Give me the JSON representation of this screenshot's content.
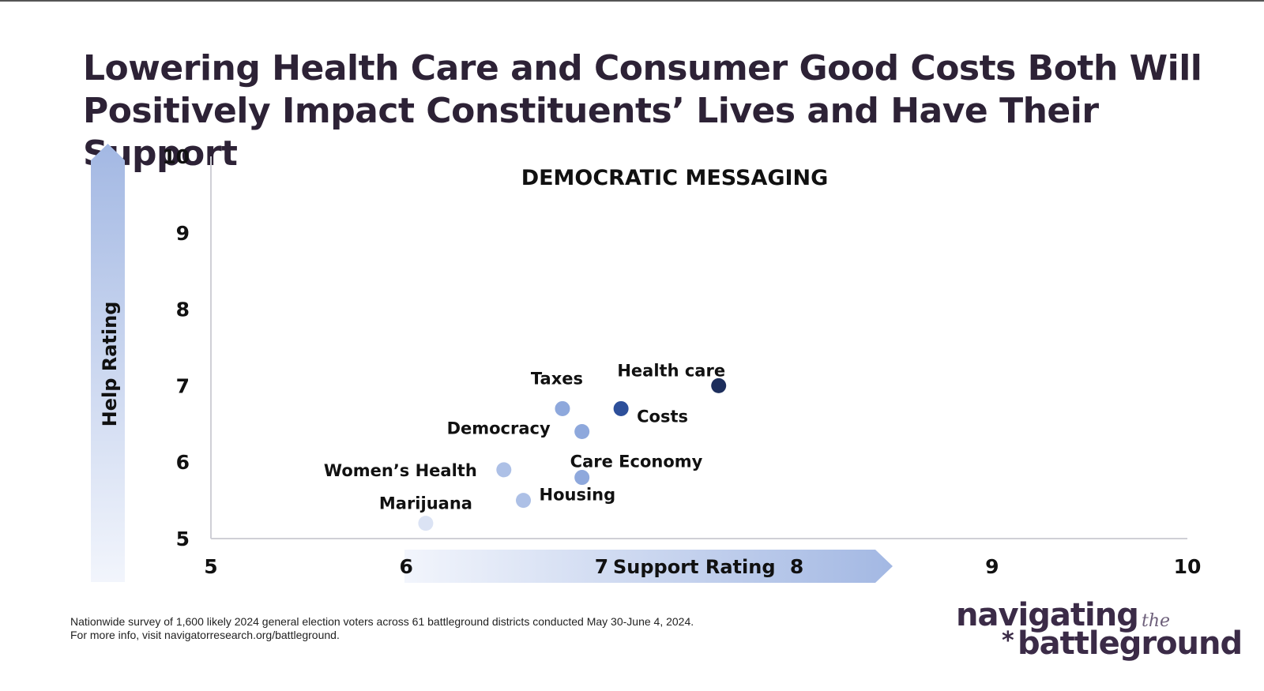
{
  "title": "Lowering Health Care and Consumer Good Costs Both Will Positively Impact Constituents’ Lives and Have Their Support",
  "footnote": {
    "line1": "Nationwide survey of 1,600 likely 2024 general election voters across 61 battleground districts conducted May 30-June 4, 2024.",
    "line2": "For more info, visit navigatorresearch.org/battleground."
  },
  "logo": {
    "line1": "navigating",
    "the": "the",
    "star": "*",
    "line2": "battleground"
  },
  "chart_data": {
    "type": "scatter",
    "title": "DEMOCRATIC MESSAGING",
    "xlabel": "Support Rating",
    "ylabel": "Help Rating",
    "xlim": [
      5,
      10
    ],
    "ylim": [
      5,
      10
    ],
    "x_ticks": [
      5,
      6,
      7,
      8,
      9,
      10
    ],
    "y_ticks": [
      5,
      6,
      7,
      8,
      9,
      10
    ],
    "grid": false,
    "points": [
      {
        "label": "Health care",
        "x": 7.6,
        "y": 7.0,
        "color": "#1d2e5c"
      },
      {
        "label": "Costs",
        "x": 7.1,
        "y": 6.7,
        "color": "#2d4f9a"
      },
      {
        "label": "Taxes",
        "x": 6.8,
        "y": 6.7,
        "color": "#8ea8dc"
      },
      {
        "label": "Democracy",
        "x": 6.9,
        "y": 6.4,
        "color": "#8ea8dc"
      },
      {
        "label": "Care Economy",
        "x": 6.9,
        "y": 5.8,
        "color": "#8ea8dc"
      },
      {
        "label": "Women’s Health",
        "x": 6.5,
        "y": 5.9,
        "color": "#adc0e6"
      },
      {
        "label": "Housing",
        "x": 6.6,
        "y": 5.5,
        "color": "#adc0e6"
      },
      {
        "label": "Marijuana",
        "x": 6.1,
        "y": 5.2,
        "color": "#dbe3f4"
      }
    ],
    "colors": {
      "arrow_light": "#f2f5fc",
      "arrow_dark": "#a3b8e3",
      "axis": "#cfcfd6"
    }
  }
}
